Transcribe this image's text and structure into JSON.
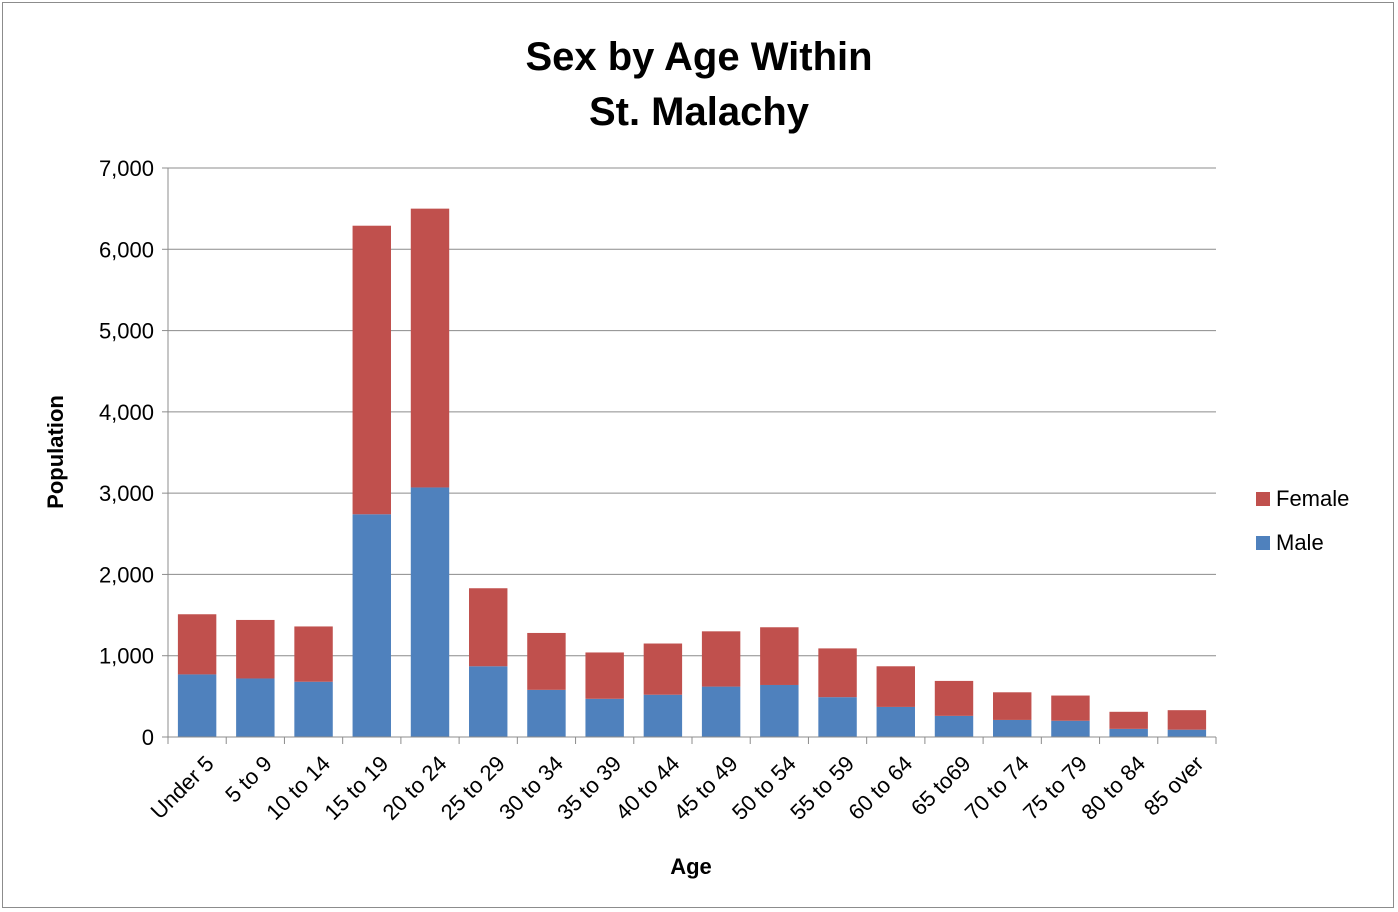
{
  "chart_data": {
    "type": "bar",
    "stacked": true,
    "title": [
      "Sex by Age Within",
      "St. Malachy"
    ],
    "xlabel": "Age",
    "ylabel": "Population",
    "ylim": [
      0,
      7000
    ],
    "yticks": [
      0,
      1000,
      2000,
      3000,
      4000,
      5000,
      6000,
      7000
    ],
    "ytick_labels": [
      "0",
      "1,000",
      "2,000",
      "3,000",
      "4,000",
      "5,000",
      "6,000",
      "7,000"
    ],
    "grid": true,
    "legend_position": "right",
    "categories": [
      "Under 5",
      "5 to 9",
      "10 to 14",
      "15 to 19",
      "20 to 24",
      "25 to 29",
      "30 to 34",
      "35 to 39",
      "40 to 44",
      "45 to 49",
      "50 to 54",
      "55 to 59",
      "60 to 64",
      "65 to69",
      "70 to 74",
      "75 to 79",
      "80 to 84",
      "85 over"
    ],
    "series": [
      {
        "name": "Male",
        "color": "#4f81bd",
        "values": [
          770,
          720,
          680,
          2740,
          3070,
          870,
          580,
          470,
          520,
          620,
          640,
          490,
          370,
          260,
          210,
          200,
          100,
          90
        ]
      },
      {
        "name": "Female",
        "color": "#c0504d",
        "values": [
          740,
          720,
          680,
          3550,
          3430,
          960,
          700,
          570,
          630,
          680,
          710,
          600,
          500,
          430,
          340,
          310,
          210,
          240
        ]
      }
    ],
    "legend_order": [
      "Female",
      "Male"
    ]
  }
}
